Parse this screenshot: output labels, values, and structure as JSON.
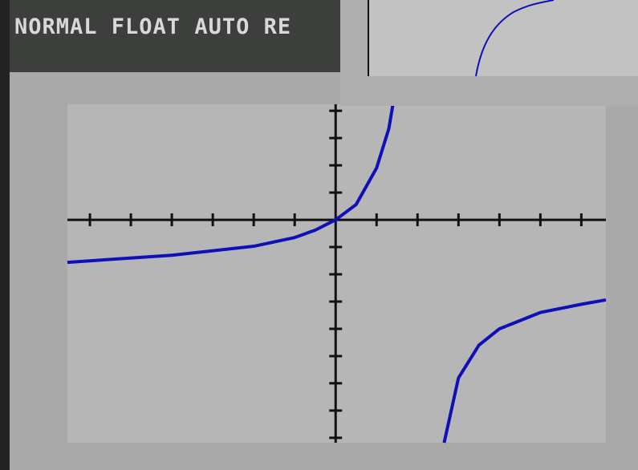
{
  "status_bar": {
    "text": "NORMAL FLOAT AUTO RE"
  },
  "chart_data": {
    "type": "line",
    "x": [
      -6.55,
      -4,
      -2,
      -1,
      -0.5,
      0,
      0.5,
      1,
      1.3,
      1.4,
      2,
      2.65,
      3,
      3.5,
      4,
      5,
      6,
      6.6
    ],
    "series": [
      {
        "color": "#1010b8",
        "values": [
          -1.56,
          -1.3,
          -0.97,
          -0.65,
          -0.38,
          0,
          0.56,
          1.9,
          3.35,
          4.24,
          null,
          -8.18,
          -5.8,
          -4.6,
          -4,
          -3.4,
          -3.1,
          -2.94
        ]
      }
    ],
    "xlim": [
      -6.55,
      6.6
    ],
    "ylim": [
      -8.18,
      4.24
    ],
    "xticks": [
      -6,
      -5,
      -4,
      -3,
      -2,
      -1,
      1,
      2,
      3,
      4,
      5,
      6
    ],
    "yticks": [
      -8,
      -7,
      -6,
      -5,
      -4,
      -3,
      -2,
      -1,
      1,
      2,
      3,
      4
    ]
  }
}
